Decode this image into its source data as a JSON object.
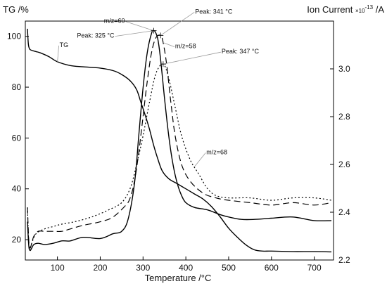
{
  "chart_data": {
    "type": "line",
    "ylabel_left": "TG /%",
    "ylabel_right": "Ion Current ×10⁻¹³ /A",
    "ylabel_right_parts": {
      "prefix": "Ion Current ",
      "mult": "×10",
      "exp": "-13",
      "unit": " /A"
    },
    "xlabel": "Temperature /°C",
    "xlim": [
      25,
      745
    ],
    "ylim_left": [
      12,
      106
    ],
    "ylim_right": [
      2.2,
      3.2
    ],
    "x_ticks": [
      100,
      200,
      300,
      400,
      500,
      600,
      700
    ],
    "y_ticks_left": [
      20,
      40,
      60,
      80,
      100
    ],
    "y_ticks_right": [
      2.2,
      2.4,
      2.6,
      2.8,
      3.0
    ],
    "grid": false,
    "series": [
      {
        "name": "TG",
        "axis": "left",
        "dash": "solid",
        "x": [
          30,
          32,
          35,
          40,
          50,
          60,
          80,
          100,
          130,
          160,
          200,
          230,
          250,
          270,
          285,
          295,
          305,
          315,
          325,
          335,
          345,
          360,
          380,
          400,
          420,
          440,
          460,
          480,
          500,
          520,
          540,
          560,
          580,
          600,
          650,
          700,
          740
        ],
        "y": [
          103,
          97,
          95,
          94.5,
          94,
          93.5,
          92,
          90,
          88.5,
          88,
          87.5,
          86.5,
          85,
          82.5,
          79,
          74,
          69,
          63.5,
          57,
          51.5,
          47,
          44,
          42,
          40,
          38,
          36,
          33,
          29,
          24.5,
          21,
          18,
          16,
          15.5,
          15.5,
          15.3,
          15.3,
          15.2
        ]
      },
      {
        "name": "m/z=60",
        "axis": "right",
        "dash": "solid",
        "x": [
          30,
          33,
          36,
          40,
          45,
          55,
          70,
          90,
          110,
          130,
          160,
          200,
          230,
          250,
          265,
          280,
          290,
          300,
          310,
          320,
          325,
          330,
          335,
          341,
          350,
          360,
          370,
          380,
          390,
          400,
          420,
          450,
          480,
          500,
          530,
          560,
          600,
          650,
          700,
          740
        ],
        "x_note": "",
        "y": [
          2.36,
          2.26,
          2.24,
          2.25,
          2.265,
          2.27,
          2.265,
          2.27,
          2.28,
          2.28,
          2.295,
          2.29,
          2.31,
          2.32,
          2.37,
          2.52,
          2.72,
          2.92,
          3.07,
          3.15,
          3.16,
          3.15,
          3.12,
          3.04,
          2.88,
          2.72,
          2.6,
          2.52,
          2.47,
          2.44,
          2.42,
          2.41,
          2.39,
          2.38,
          2.37,
          2.37,
          2.375,
          2.38,
          2.365,
          2.365
        ]
      },
      {
        "name": "m/z=58",
        "axis": "right",
        "dash": "dashed",
        "x": [
          30,
          33,
          36,
          40,
          45,
          55,
          70,
          90,
          110,
          130,
          160,
          200,
          230,
          260,
          270,
          280,
          290,
          300,
          310,
          320,
          330,
          341,
          347,
          355,
          365,
          375,
          390,
          410,
          440,
          470,
          500,
          550,
          600,
          650,
          700,
          740
        ],
        "y": [
          2.42,
          2.28,
          2.25,
          2.27,
          2.3,
          2.32,
          2.32,
          2.32,
          2.32,
          2.33,
          2.345,
          2.36,
          2.38,
          2.43,
          2.46,
          2.53,
          2.65,
          2.8,
          2.95,
          3.07,
          3.13,
          3.14,
          3.11,
          3.02,
          2.86,
          2.72,
          2.6,
          2.53,
          2.48,
          2.46,
          2.45,
          2.44,
          2.43,
          2.44,
          2.43,
          2.44
        ]
      },
      {
        "name": "m/z=68",
        "axis": "right",
        "dash": "dotted",
        "x": [
          30,
          33,
          36,
          40,
          50,
          70,
          90,
          110,
          140,
          180,
          220,
          250,
          270,
          285,
          300,
          315,
          330,
          347,
          360,
          375,
          390,
          410,
          430,
          450,
          470,
          500,
          550,
          600,
          650,
          700,
          740
        ],
        "y": [
          2.42,
          2.27,
          2.25,
          2.27,
          2.31,
          2.33,
          2.34,
          2.35,
          2.36,
          2.38,
          2.41,
          2.44,
          2.5,
          2.6,
          2.72,
          2.86,
          2.98,
          3.02,
          2.96,
          2.84,
          2.72,
          2.62,
          2.56,
          2.5,
          2.47,
          2.46,
          2.46,
          2.45,
          2.46,
          2.46,
          2.45
        ]
      }
    ],
    "annotations": [
      {
        "label": "TG",
        "series": "TG",
        "at_x": 100
      },
      {
        "label": "m/z=60",
        "series": "m/z=60",
        "at_x": 325
      },
      {
        "label": "m/z=58",
        "series": "m/z=58",
        "at_x": 347
      },
      {
        "label": "m/z=68",
        "series": "m/z=68",
        "at_x": 420
      },
      {
        "label": "Peak: 325 °C",
        "series": "m/z=60",
        "at_x": 325,
        "marker": true
      },
      {
        "label": "Peak: 341 °C",
        "series": "m/z=58",
        "at_x": 341,
        "marker": true
      },
      {
        "label": "Peak: 347 °C",
        "series": "m/z=68",
        "at_x": 347,
        "marker": true
      }
    ]
  }
}
